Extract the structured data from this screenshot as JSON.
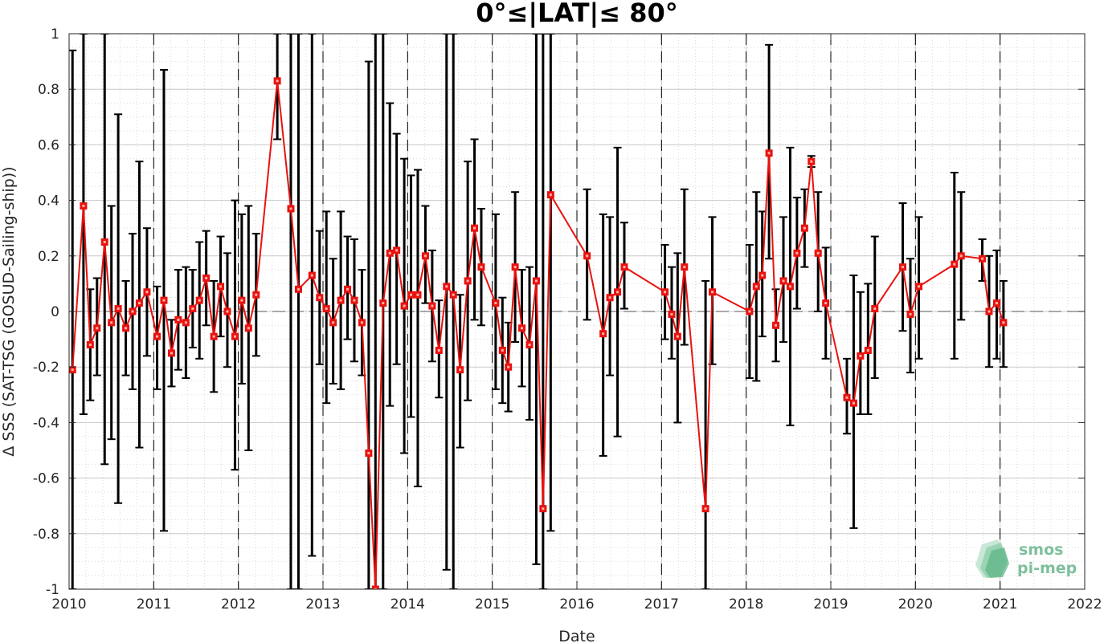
{
  "chart_data": {
    "type": "line",
    "title": "0°≤|LAT|≤ 80°",
    "xlabel": "Date",
    "ylabel": "Δ SSS (SAT-TSG (GOSUD-Sailing-ship))",
    "xlim": [
      2010,
      2022
    ],
    "ylim": [
      -1,
      1
    ],
    "x_ticks": [
      "2010",
      "2011",
      "2012",
      "2013",
      "2014",
      "2015",
      "2016",
      "2017",
      "2018",
      "2019",
      "2020",
      "2021",
      "2022"
    ],
    "y_ticks": [
      "1",
      "0.8",
      "0.6",
      "0.4",
      "0.2",
      "0",
      "-0.2",
      "-0.4",
      "-0.6",
      "-0.8",
      "-1"
    ],
    "grid": "on (dotted minor)",
    "year_boundaries": "dashed vertical lines at each year",
    "reference_line": 0,
    "series": [
      {
        "color": "#e8130f",
        "marker": "square",
        "errorbar_color": "#000000",
        "points": [
          {
            "x": 2010.04,
            "y": -0.21,
            "lo": -1.0,
            "hi": 0.94
          },
          {
            "x": 2010.17,
            "y": 0.38,
            "lo": -0.37,
            "hi": 1.0
          },
          {
            "x": 2010.25,
            "y": -0.12,
            "lo": -0.32,
            "hi": 0.08
          },
          {
            "x": 2010.33,
            "y": -0.06,
            "lo": -0.23,
            "hi": 0.12
          },
          {
            "x": 2010.42,
            "y": 0.25,
            "lo": -0.55,
            "hi": 1.0
          },
          {
            "x": 2010.5,
            "y": -0.04,
            "lo": -0.46,
            "hi": 0.38
          },
          {
            "x": 2010.58,
            "y": 0.01,
            "lo": -0.69,
            "hi": 0.71
          },
          {
            "x": 2010.67,
            "y": -0.06,
            "lo": -0.23,
            "hi": 0.11
          },
          {
            "x": 2010.75,
            "y": 0.0,
            "lo": -0.28,
            "hi": 0.28
          },
          {
            "x": 2010.83,
            "y": 0.03,
            "lo": -0.49,
            "hi": 0.54
          },
          {
            "x": 2010.92,
            "y": 0.07,
            "lo": -0.16,
            "hi": 0.3
          },
          {
            "x": 2011.04,
            "y": -0.09,
            "lo": -0.28,
            "hi": 0.09
          },
          {
            "x": 2011.12,
            "y": 0.04,
            "lo": -0.79,
            "hi": 0.87
          },
          {
            "x": 2011.21,
            "y": -0.15,
            "lo": -0.27,
            "hi": -0.03
          },
          {
            "x": 2011.29,
            "y": -0.03,
            "lo": -0.21,
            "hi": 0.15
          },
          {
            "x": 2011.38,
            "y": -0.04,
            "lo": -0.24,
            "hi": 0.16
          },
          {
            "x": 2011.46,
            "y": 0.01,
            "lo": -0.13,
            "hi": 0.15
          },
          {
            "x": 2011.54,
            "y": 0.04,
            "lo": -0.17,
            "hi": 0.25
          },
          {
            "x": 2011.62,
            "y": 0.12,
            "lo": -0.05,
            "hi": 0.29
          },
          {
            "x": 2011.71,
            "y": -0.09,
            "lo": -0.29,
            "hi": 0.11
          },
          {
            "x": 2011.79,
            "y": 0.09,
            "lo": -0.09,
            "hi": 0.27
          },
          {
            "x": 2011.87,
            "y": 0.0,
            "lo": -0.2,
            "hi": 0.21
          },
          {
            "x": 2011.96,
            "y": -0.09,
            "lo": -0.57,
            "hi": 0.4
          },
          {
            "x": 2012.04,
            "y": 0.04,
            "lo": -0.26,
            "hi": 0.35
          },
          {
            "x": 2012.12,
            "y": -0.06,
            "lo": -0.5,
            "hi": 0.38
          },
          {
            "x": 2012.21,
            "y": 0.06,
            "lo": -0.16,
            "hi": 0.28
          },
          {
            "x": 2012.46,
            "y": 0.83,
            "lo": 0.62,
            "hi": 1.0
          },
          {
            "x": 2012.62,
            "y": 0.37,
            "lo": -1.0,
            "hi": 1.0
          },
          {
            "x": 2012.71,
            "y": 0.08,
            "lo": -1.0,
            "hi": 1.0
          },
          {
            "x": 2012.87,
            "y": 0.13,
            "lo": -0.88,
            "hi": 1.0
          },
          {
            "x": 2012.96,
            "y": 0.05,
            "lo": -0.19,
            "hi": 0.29
          },
          {
            "x": 2013.04,
            "y": 0.01,
            "lo": -0.33,
            "hi": 0.36
          },
          {
            "x": 2013.12,
            "y": -0.04,
            "lo": -0.26,
            "hi": 0.19
          },
          {
            "x": 2013.21,
            "y": 0.04,
            "lo": -0.28,
            "hi": 0.36
          },
          {
            "x": 2013.29,
            "y": 0.08,
            "lo": -0.1,
            "hi": 0.27
          },
          {
            "x": 2013.37,
            "y": 0.04,
            "lo": -0.18,
            "hi": 0.26
          },
          {
            "x": 2013.46,
            "y": -0.04,
            "lo": -0.23,
            "hi": 0.15
          },
          {
            "x": 2013.54,
            "y": -0.51,
            "lo": -1.0,
            "hi": 0.9
          },
          {
            "x": 2013.62,
            "y": -1.0,
            "lo": -1.0,
            "hi": 1.0
          },
          {
            "x": 2013.71,
            "y": 0.03,
            "lo": -1.0,
            "hi": 1.0
          },
          {
            "x": 2013.79,
            "y": 0.21,
            "lo": -0.34,
            "hi": 0.75
          },
          {
            "x": 2013.87,
            "y": 0.22,
            "lo": -0.19,
            "hi": 0.64
          },
          {
            "x": 2013.96,
            "y": 0.02,
            "lo": -0.51,
            "hi": 0.55
          },
          {
            "x": 2014.04,
            "y": 0.06,
            "lo": -0.38,
            "hi": 0.49
          },
          {
            "x": 2014.12,
            "y": 0.06,
            "lo": -0.63,
            "hi": 0.51
          },
          {
            "x": 2014.21,
            "y": 0.2,
            "lo": 0.03,
            "hi": 0.38
          },
          {
            "x": 2014.29,
            "y": 0.02,
            "lo": -0.18,
            "hi": 0.22
          },
          {
            "x": 2014.37,
            "y": -0.14,
            "lo": -0.31,
            "hi": 0.04
          },
          {
            "x": 2014.46,
            "y": 0.09,
            "lo": -0.93,
            "hi": 1.0
          },
          {
            "x": 2014.54,
            "y": 0.06,
            "lo": -1.0,
            "hi": 1.0
          },
          {
            "x": 2014.62,
            "y": -0.21,
            "lo": -0.49,
            "hi": 0.06
          },
          {
            "x": 2014.71,
            "y": 0.11,
            "lo": -0.32,
            "hi": 0.54
          },
          {
            "x": 2014.79,
            "y": 0.3,
            "lo": -0.03,
            "hi": 0.62
          },
          {
            "x": 2014.87,
            "y": 0.16,
            "lo": -0.05,
            "hi": 0.37
          },
          {
            "x": 2015.04,
            "y": 0.03,
            "lo": -0.28,
            "hi": 0.35
          },
          {
            "x": 2015.12,
            "y": -0.14,
            "lo": -0.33,
            "hi": 0.05
          },
          {
            "x": 2015.19,
            "y": -0.2,
            "lo": -0.36,
            "hi": -0.04
          },
          {
            "x": 2015.27,
            "y": 0.16,
            "lo": -0.11,
            "hi": 0.43
          },
          {
            "x": 2015.35,
            "y": -0.06,
            "lo": -0.27,
            "hi": 0.15
          },
          {
            "x": 2015.44,
            "y": -0.12,
            "lo": -0.39,
            "hi": 0.16
          },
          {
            "x": 2015.52,
            "y": 0.11,
            "lo": -0.91,
            "hi": 1.0
          },
          {
            "x": 2015.6,
            "y": -0.71,
            "lo": -1.0,
            "hi": 1.0
          },
          {
            "x": 2015.69,
            "y": 0.42,
            "lo": -0.79,
            "hi": 1.0
          },
          {
            "x": 2016.12,
            "y": 0.2,
            "lo": -0.03,
            "hi": 0.44
          },
          {
            "x": 2016.31,
            "y": -0.08,
            "lo": -0.52,
            "hi": 0.35
          },
          {
            "x": 2016.39,
            "y": 0.05,
            "lo": -0.23,
            "hi": 0.34
          },
          {
            "x": 2016.48,
            "y": 0.07,
            "lo": -0.45,
            "hi": 0.59
          },
          {
            "x": 2016.56,
            "y": 0.16,
            "lo": 0.01,
            "hi": 0.32
          },
          {
            "x": 2017.04,
            "y": 0.07,
            "lo": -0.1,
            "hi": 0.24
          },
          {
            "x": 2017.12,
            "y": -0.01,
            "lo": -0.17,
            "hi": 0.16
          },
          {
            "x": 2017.19,
            "y": -0.09,
            "lo": -0.4,
            "hi": 0.21
          },
          {
            "x": 2017.27,
            "y": 0.16,
            "lo": -0.12,
            "hi": 0.44
          },
          {
            "x": 2017.52,
            "y": -0.71,
            "lo": -1.0,
            "hi": 0.11
          },
          {
            "x": 2017.6,
            "y": 0.07,
            "lo": -0.19,
            "hi": 0.34
          },
          {
            "x": 2018.04,
            "y": 0.0,
            "lo": -0.24,
            "hi": 0.24
          },
          {
            "x": 2018.12,
            "y": 0.09,
            "lo": -0.25,
            "hi": 0.43
          },
          {
            "x": 2018.19,
            "y": 0.13,
            "lo": -0.09,
            "hi": 0.36
          },
          {
            "x": 2018.27,
            "y": 0.57,
            "lo": 0.19,
            "hi": 0.96
          },
          {
            "x": 2018.35,
            "y": -0.05,
            "lo": -0.18,
            "hi": 0.08
          },
          {
            "x": 2018.44,
            "y": 0.11,
            "lo": -0.11,
            "hi": 0.34
          },
          {
            "x": 2018.52,
            "y": 0.09,
            "lo": -0.41,
            "hi": 0.59
          },
          {
            "x": 2018.6,
            "y": 0.21,
            "lo": 0.01,
            "hi": 0.41
          },
          {
            "x": 2018.69,
            "y": 0.3,
            "lo": 0.16,
            "hi": 0.44
          },
          {
            "x": 2018.77,
            "y": 0.54,
            "lo": 0.52,
            "hi": 0.56
          },
          {
            "x": 2018.85,
            "y": 0.21,
            "lo": 0.0,
            "hi": 0.43
          },
          {
            "x": 2018.94,
            "y": 0.03,
            "lo": -0.17,
            "hi": 0.23
          },
          {
            "x": 2019.19,
            "y": -0.31,
            "lo": -0.44,
            "hi": -0.17
          },
          {
            "x": 2019.27,
            "y": -0.33,
            "lo": -0.78,
            "hi": 0.13
          },
          {
            "x": 2019.35,
            "y": -0.16,
            "lo": -0.37,
            "hi": 0.07
          },
          {
            "x": 2019.44,
            "y": -0.14,
            "lo": -0.37,
            "hi": 0.1
          },
          {
            "x": 2019.52,
            "y": 0.01,
            "lo": -0.24,
            "hi": 0.27
          },
          {
            "x": 2019.85,
            "y": 0.16,
            "lo": -0.07,
            "hi": 0.39
          },
          {
            "x": 2019.94,
            "y": -0.01,
            "lo": -0.22,
            "hi": 0.19
          },
          {
            "x": 2020.04,
            "y": 0.09,
            "lo": -0.17,
            "hi": 0.34
          },
          {
            "x": 2020.46,
            "y": 0.17,
            "lo": -0.17,
            "hi": 0.5
          },
          {
            "x": 2020.54,
            "y": 0.2,
            "lo": -0.03,
            "hi": 0.43
          },
          {
            "x": 2020.79,
            "y": 0.19,
            "lo": 0.11,
            "hi": 0.26
          },
          {
            "x": 2020.87,
            "y": 0.0,
            "lo": -0.2,
            "hi": 0.2
          },
          {
            "x": 2020.96,
            "y": 0.03,
            "lo": -0.17,
            "hi": 0.22
          },
          {
            "x": 2021.04,
            "y": -0.04,
            "lo": -0.2,
            "hi": 0.11
          }
        ]
      }
    ]
  },
  "logo": {
    "line1": "smos",
    "line2": "pi-mep"
  }
}
